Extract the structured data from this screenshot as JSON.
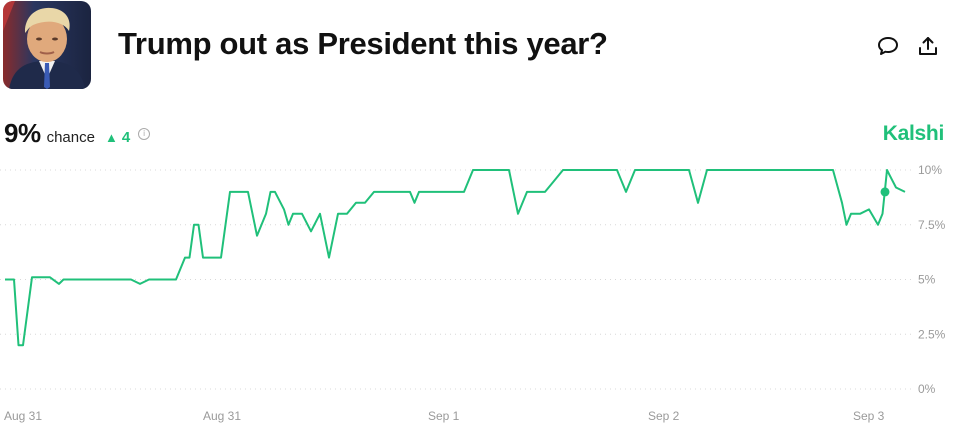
{
  "header": {
    "title": "Trump out as President this year?",
    "avatar_icon": "portrait-photo",
    "comment_icon": "speech-bubble-icon",
    "share_icon": "upload-share-icon"
  },
  "stats": {
    "percent": "9%",
    "chance_label": "chance",
    "delta_symbol": "▲",
    "delta_value": "4",
    "info_symbol": "i"
  },
  "brand": {
    "name": "Kalshi",
    "color": "#20c07a"
  },
  "chart_data": {
    "type": "line",
    "title": "",
    "xlabel": "",
    "ylabel": "",
    "ylim": [
      0,
      10
    ],
    "y_ticks": [
      0,
      2.5,
      5,
      7.5,
      10
    ],
    "y_tick_labels": [
      "0%",
      "2.5%",
      "5%",
      "7.5%",
      "10%"
    ],
    "x_tick_labels": [
      "Aug 31",
      "Aug 31",
      "Sep 1",
      "Sep 2",
      "Sep 3"
    ],
    "grid": true,
    "line_color": "#20c07a",
    "series": [
      {
        "name": "",
        "x": [
          0,
          0.01,
          0.015,
          0.02,
          0.03,
          0.05,
          0.06,
          0.065,
          0.07,
          0.08,
          0.09,
          0.1,
          0.11,
          0.12,
          0.13,
          0.14,
          0.15,
          0.16,
          0.17,
          0.18,
          0.19,
          0.2,
          0.205,
          0.21,
          0.215,
          0.22,
          0.225,
          0.23,
          0.24,
          0.25,
          0.255,
          0.26,
          0.27,
          0.28,
          0.29,
          0.295,
          0.3,
          0.31,
          0.315,
          0.32,
          0.33,
          0.34,
          0.35,
          0.36,
          0.37,
          0.38,
          0.39,
          0.4,
          0.41,
          0.42,
          0.43,
          0.44,
          0.45,
          0.455,
          0.46,
          0.47,
          0.48,
          0.49,
          0.5,
          0.51,
          0.52,
          0.53,
          0.54,
          0.55,
          0.56,
          0.57,
          0.58,
          0.59,
          0.6,
          0.61,
          0.62,
          0.63,
          0.64,
          0.65,
          0.66,
          0.67,
          0.68,
          0.69,
          0.7,
          0.71,
          0.72,
          0.73,
          0.74,
          0.75,
          0.76,
          0.77,
          0.78,
          0.79,
          0.8,
          0.81,
          0.82,
          0.83,
          0.84,
          0.85,
          0.86,
          0.87,
          0.88,
          0.89,
          0.9,
          0.91,
          0.92,
          0.93,
          0.935,
          0.94,
          0.95,
          0.96,
          0.97,
          0.975,
          0.98,
          0.985,
          0.99,
          1
        ],
        "values": [
          5,
          5,
          2,
          2,
          5.1,
          5.1,
          4.8,
          5,
          5,
          5,
          5,
          5,
          5,
          5,
          5,
          5,
          4.8,
          5,
          5,
          5,
          5,
          6,
          6,
          7.5,
          7.5,
          6,
          6,
          6,
          6,
          9,
          9,
          9,
          9,
          7,
          8,
          9,
          9,
          8.2,
          7.5,
          8,
          8,
          7.2,
          8,
          6,
          8,
          8,
          8.5,
          8.5,
          9,
          9,
          9,
          9,
          9,
          8.5,
          9,
          9,
          9,
          9,
          9,
          9,
          10,
          10,
          10,
          10,
          10,
          8,
          9,
          9,
          9,
          9.5,
          10,
          10,
          10,
          10,
          10,
          10,
          10,
          9,
          10,
          10,
          10,
          10,
          10,
          10,
          10,
          8.5,
          10,
          10,
          10,
          10,
          10,
          10,
          10,
          10,
          10,
          10,
          10,
          10,
          10,
          10,
          10,
          8.5,
          7.5,
          8,
          8,
          8.2,
          7.5,
          8,
          10,
          9.6,
          9.2,
          9
        ]
      }
    ]
  }
}
